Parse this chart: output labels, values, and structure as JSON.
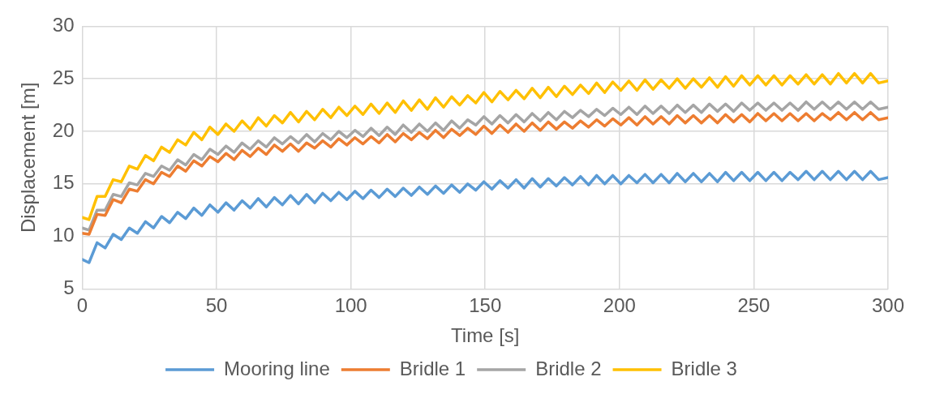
{
  "chart_data": {
    "type": "line",
    "xlabel": "Time [s]",
    "ylabel": "Displacement [m]",
    "x": [
      0,
      2.5,
      5.5,
      8.5,
      11.5,
      14.5,
      17.5,
      20.5,
      23.5,
      26.5,
      29.5,
      32.5,
      35.5,
      38.5,
      41.5,
      44.5,
      47.5,
      50.5,
      53.5,
      56.5,
      59.5,
      62.5,
      65.5,
      68.5,
      71.5,
      74.5,
      77.5,
      80.5,
      83.5,
      86.5,
      89.5,
      92.5,
      95.5,
      98.5,
      101.5,
      104.5,
      107.5,
      110.5,
      113.5,
      116.5,
      119.5,
      122.5,
      125.5,
      128.5,
      131.5,
      134.5,
      137.5,
      140.5,
      143.5,
      146.5,
      149.5,
      152.5,
      155.5,
      158.5,
      161.5,
      164.5,
      167.5,
      170.5,
      173.5,
      176.5,
      179.5,
      182.5,
      185.5,
      188.5,
      191.5,
      194.5,
      197.5,
      200.5,
      203.5,
      206.5,
      209.5,
      212.5,
      215.5,
      218.5,
      221.5,
      224.5,
      227.5,
      230.5,
      233.5,
      236.5,
      239.5,
      242.5,
      245.5,
      248.5,
      251.5,
      254.5,
      257.5,
      260.5,
      263.5,
      266.5,
      269.5,
      272.5,
      275.5,
      278.5,
      281.5,
      284.5,
      287.5,
      290.5,
      293.5,
      296.5,
      300
    ],
    "series": [
      {
        "name": "Mooring line",
        "color": "#5b9bd5",
        "values": [
          7.8,
          7.5,
          9.4,
          8.9,
          10.2,
          9.7,
          10.8,
          10.3,
          11.4,
          10.8,
          11.9,
          11.3,
          12.3,
          11.7,
          12.7,
          12.0,
          13.0,
          12.3,
          13.2,
          12.5,
          13.4,
          12.7,
          13.6,
          12.8,
          13.7,
          13.0,
          13.9,
          13.1,
          14.0,
          13.2,
          14.1,
          13.4,
          14.2,
          13.5,
          14.3,
          13.6,
          14.4,
          13.7,
          14.5,
          13.8,
          14.6,
          13.9,
          14.7,
          14.0,
          14.8,
          14.1,
          14.9,
          14.2,
          15.0,
          14.4,
          15.2,
          14.5,
          15.3,
          14.6,
          15.4,
          14.6,
          15.5,
          14.7,
          15.5,
          14.8,
          15.6,
          14.9,
          15.7,
          14.9,
          15.8,
          15.0,
          15.8,
          15.0,
          15.8,
          15.1,
          15.9,
          15.1,
          15.9,
          15.1,
          16.0,
          15.2,
          16.0,
          15.2,
          16.0,
          15.2,
          16.1,
          15.3,
          16.1,
          15.3,
          16.1,
          15.3,
          16.1,
          15.3,
          16.1,
          15.4,
          16.2,
          15.4,
          16.2,
          15.4,
          16.2,
          15.4,
          16.2,
          15.4,
          16.2,
          15.4,
          15.6
        ]
      },
      {
        "name": "Bridle 1",
        "color": "#ed7d31",
        "values": [
          10.3,
          10.2,
          12.1,
          12.0,
          13.5,
          13.2,
          14.5,
          14.3,
          15.4,
          15.0,
          16.1,
          15.7,
          16.7,
          16.2,
          17.2,
          16.7,
          17.6,
          17.1,
          17.9,
          17.3,
          18.2,
          17.6,
          18.4,
          17.8,
          18.7,
          18.1,
          18.8,
          18.1,
          18.9,
          18.4,
          19.1,
          18.5,
          19.3,
          18.7,
          19.4,
          18.8,
          19.5,
          18.9,
          19.7,
          19.0,
          19.8,
          19.2,
          19.9,
          19.3,
          20.1,
          19.4,
          20.2,
          19.6,
          20.3,
          19.7,
          20.5,
          19.8,
          20.6,
          19.9,
          20.7,
          20.0,
          20.8,
          20.1,
          20.9,
          20.2,
          20.9,
          20.3,
          21.0,
          20.4,
          21.1,
          20.5,
          21.2,
          20.6,
          21.3,
          20.6,
          21.4,
          20.7,
          21.4,
          20.7,
          21.5,
          20.8,
          21.5,
          20.8,
          21.5,
          20.8,
          21.6,
          20.9,
          21.6,
          20.9,
          21.7,
          21.0,
          21.7,
          21.0,
          21.7,
          21.0,
          21.7,
          21.0,
          21.7,
          21.1,
          21.8,
          21.1,
          21.8,
          21.1,
          21.8,
          21.1,
          21.3
        ]
      },
      {
        "name": "Bridle 2",
        "color": "#a5a5a5",
        "values": [
          10.8,
          10.6,
          12.5,
          12.5,
          14.0,
          13.8,
          15.1,
          14.9,
          16.0,
          15.7,
          16.7,
          16.3,
          17.3,
          16.8,
          17.8,
          17.3,
          18.3,
          17.8,
          18.6,
          18.0,
          18.9,
          18.3,
          19.1,
          18.5,
          19.4,
          18.8,
          19.5,
          18.9,
          19.7,
          19.0,
          19.8,
          19.2,
          20.0,
          19.4,
          20.1,
          19.5,
          20.3,
          19.6,
          20.4,
          19.7,
          20.6,
          19.9,
          20.7,
          20.0,
          20.8,
          20.1,
          21.0,
          20.3,
          21.1,
          20.6,
          21.4,
          20.7,
          21.5,
          20.8,
          21.6,
          20.9,
          21.7,
          21.0,
          21.8,
          21.1,
          21.9,
          21.3,
          22.0,
          21.4,
          22.1,
          21.5,
          22.2,
          21.6,
          22.3,
          21.6,
          22.4,
          21.7,
          22.4,
          21.7,
          22.5,
          21.8,
          22.5,
          21.8,
          22.6,
          21.9,
          22.6,
          21.9,
          22.7,
          22.0,
          22.7,
          22.0,
          22.7,
          22.0,
          22.7,
          22.0,
          22.8,
          22.1,
          22.8,
          22.1,
          22.8,
          22.1,
          22.8,
          22.1,
          22.8,
          22.1,
          22.3
        ]
      },
      {
        "name": "Bridle 3",
        "color": "#ffc000",
        "values": [
          11.8,
          11.6,
          13.8,
          13.8,
          15.4,
          15.2,
          16.7,
          16.4,
          17.7,
          17.2,
          18.5,
          18.0,
          19.2,
          18.7,
          19.9,
          19.2,
          20.4,
          19.7,
          20.7,
          20.0,
          21.0,
          20.2,
          21.3,
          20.5,
          21.5,
          20.8,
          21.8,
          20.9,
          21.9,
          21.1,
          22.1,
          21.3,
          22.3,
          21.5,
          22.4,
          21.6,
          22.6,
          21.7,
          22.7,
          21.8,
          22.9,
          22.0,
          23.0,
          22.1,
          23.2,
          22.3,
          23.3,
          22.5,
          23.4,
          22.7,
          23.7,
          22.8,
          23.8,
          23.0,
          23.9,
          23.1,
          24.1,
          23.2,
          24.2,
          23.3,
          24.3,
          23.5,
          24.4,
          23.6,
          24.6,
          23.7,
          24.7,
          23.9,
          24.8,
          23.9,
          24.9,
          24.0,
          24.9,
          24.1,
          25.0,
          24.1,
          25.0,
          24.2,
          25.1,
          24.2,
          25.2,
          24.3,
          25.3,
          24.4,
          25.3,
          24.4,
          25.3,
          24.4,
          25.3,
          24.5,
          25.4,
          24.5,
          25.4,
          24.5,
          25.5,
          24.6,
          25.5,
          24.6,
          25.5,
          24.6,
          24.8
        ]
      }
    ],
    "xlim": [
      0,
      300
    ],
    "xticks": [
      0,
      50,
      100,
      150,
      200,
      250,
      300
    ],
    "ylim": [
      5,
      30
    ],
    "yticks": [
      5,
      10,
      15,
      20,
      25,
      30
    ],
    "grid": true,
    "legend": "bottom",
    "marker": "none",
    "line_style": "solid"
  }
}
